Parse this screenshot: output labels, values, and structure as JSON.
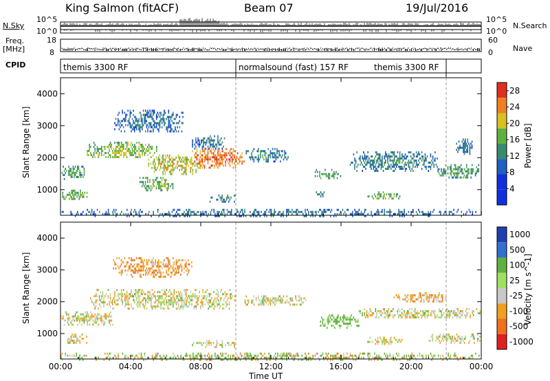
{
  "header": {
    "station": "King Salmon (fitACF)",
    "beam": "Beam 07",
    "date": "19/Jul/2016"
  },
  "side_labels": {
    "nsky": "N.Sky",
    "nsky_top": "10^5",
    "nsky_bottom": "10^0",
    "nsearch": "N.Search",
    "nsearch_top": "10^5",
    "nsearch_bottom": "10^0",
    "freq": "Freq.",
    "freq_unit": "[MHz]",
    "freq_top": "18",
    "freq_bottom": "8",
    "nave": "Nave",
    "nave_top": "60",
    "nave_bottom": "0",
    "cpid": "CPID"
  },
  "cpid_segments": [
    {
      "label": "themis 3300 RF",
      "start_hour": 0,
      "end_hour": 10
    },
    {
      "label": "normalsound (fast) 157 RF",
      "start_hour": 10,
      "end_hour": 22
    },
    {
      "label": "themis 3300 RF",
      "start_hour": 22,
      "end_hour": 24
    }
  ],
  "dashed_hours": [
    10,
    22
  ],
  "chart_data": [
    {
      "type": "heatmap",
      "title": "",
      "xlabel": "Time UT",
      "ylabel": "Slant Range [km]",
      "xlim": [
        0,
        24
      ],
      "ylim": [
        200,
        4500
      ],
      "x_ticks": [
        "00:00",
        "04:00",
        "08:00",
        "12:00",
        "16:00",
        "20:00",
        "00:00"
      ],
      "x_tick_hours": [
        0,
        4,
        8,
        12,
        16,
        20,
        24
      ],
      "y_ticks": [
        "1000",
        "2000",
        "3000",
        "4000"
      ],
      "y_tick_values": [
        1000,
        2000,
        3000,
        4000
      ],
      "colorbar": {
        "label": "Power [dB]",
        "labels": [
          "4",
          "8",
          "12",
          "16",
          "20",
          "24",
          "28"
        ],
        "values": [
          4,
          8,
          12,
          16,
          20,
          24,
          28
        ],
        "range": [
          0,
          30
        ],
        "colors": [
          "#1030e0",
          "#2060c0",
          "#3a8a70",
          "#60b040",
          "#d8c020",
          "#f08020",
          "#e03020"
        ]
      },
      "echo_regions": [
        {
          "t0": 0.0,
          "t1": 24.0,
          "r0": 200,
          "r1": 400,
          "power": 6
        },
        {
          "t0": 0.0,
          "t1": 1.5,
          "r0": 1350,
          "r1": 1750,
          "power": 10
        },
        {
          "t0": 0.1,
          "t1": 1.6,
          "r0": 700,
          "r1": 1000,
          "power": 12
        },
        {
          "t0": 1.5,
          "t1": 5.5,
          "r0": 2000,
          "r1": 2500,
          "power": 14
        },
        {
          "t0": 3.0,
          "t1": 7.0,
          "r0": 2800,
          "r1": 3500,
          "power": 6
        },
        {
          "t0": 4.5,
          "t1": 6.5,
          "r0": 1000,
          "r1": 1400,
          "power": 12
        },
        {
          "t0": 5.0,
          "t1": 8.0,
          "r0": 1500,
          "r1": 2100,
          "power": 16
        },
        {
          "t0": 7.5,
          "t1": 10.5,
          "r0": 1700,
          "r1": 2300,
          "power": 22
        },
        {
          "t0": 7.5,
          "t1": 9.5,
          "r0": 2300,
          "r1": 2700,
          "power": 6
        },
        {
          "t0": 8.5,
          "t1": 10.0,
          "r0": 650,
          "r1": 850,
          "power": 8
        },
        {
          "t0": 10.5,
          "t1": 13.0,
          "r0": 1900,
          "r1": 2300,
          "power": 8
        },
        {
          "t0": 14.5,
          "t1": 16.0,
          "r0": 1350,
          "r1": 1650,
          "power": 10
        },
        {
          "t0": 14.5,
          "t1": 15.2,
          "r0": 800,
          "r1": 950,
          "power": 10
        },
        {
          "t0": 16.5,
          "t1": 21.5,
          "r0": 1600,
          "r1": 2200,
          "power": 8
        },
        {
          "t0": 17.5,
          "t1": 19.5,
          "r0": 700,
          "r1": 950,
          "power": 12
        },
        {
          "t0": 21.5,
          "t1": 24.0,
          "r0": 1350,
          "r1": 1800,
          "power": 10
        },
        {
          "t0": 22.5,
          "t1": 23.5,
          "r0": 2100,
          "r1": 2600,
          "power": 6
        }
      ]
    },
    {
      "type": "heatmap",
      "title": "",
      "xlabel": "Time UT",
      "ylabel": "Slant Range [km]",
      "xlim": [
        0,
        24
      ],
      "ylim": [
        200,
        4500
      ],
      "x_ticks": [
        "00:00",
        "04:00",
        "08:00",
        "12:00",
        "16:00",
        "20:00",
        "00:00"
      ],
      "x_tick_hours": [
        0,
        4,
        8,
        12,
        16,
        20,
        24
      ],
      "y_ticks": [
        "1000",
        "2000",
        "3000",
        "4000"
      ],
      "y_tick_values": [
        1000,
        2000,
        3000,
        4000
      ],
      "colorbar": {
        "label": "Velocity [m s^-1]",
        "labels": [
          "1000",
          "500",
          "100",
          "25",
          "-25",
          "-100",
          "-500",
          "-1000"
        ],
        "colors": [
          "#2040b0",
          "#3070d0",
          "#60b040",
          "#a0e060",
          "#c8c8c8",
          "#f0a020",
          "#f07020",
          "#e02020"
        ]
      },
      "echo_regions": [
        {
          "t0": 0.0,
          "t1": 24.0,
          "r0": 200,
          "r1": 400,
          "velocity": 50
        },
        {
          "t0": 1.5,
          "t1": 10.0,
          "r0": 1800,
          "r1": 2400,
          "velocity": 0
        },
        {
          "t0": 0.0,
          "t1": 3.0,
          "r0": 1300,
          "r1": 1700,
          "velocity": 0
        },
        {
          "t0": 3.0,
          "t1": 7.5,
          "r0": 2800,
          "r1": 3400,
          "velocity": -80
        },
        {
          "t0": 0.2,
          "t1": 1.5,
          "r0": 700,
          "r1": 1000,
          "velocity": 0
        },
        {
          "t0": 7.5,
          "t1": 10.0,
          "r0": 600,
          "r1": 800,
          "velocity": 0
        },
        {
          "t0": 10.5,
          "t1": 14.0,
          "r0": 1900,
          "r1": 2200,
          "velocity": 0
        },
        {
          "t0": 14.8,
          "t1": 17.0,
          "r0": 1200,
          "r1": 1600,
          "velocity": 100
        },
        {
          "t0": 17.0,
          "t1": 24.0,
          "r0": 1500,
          "r1": 1800,
          "velocity": 0
        },
        {
          "t0": 17.5,
          "t1": 19.5,
          "r0": 700,
          "r1": 900,
          "velocity": 0
        },
        {
          "t0": 19.0,
          "t1": 22.0,
          "r0": 2000,
          "r1": 2300,
          "velocity": -50
        },
        {
          "t0": 21.0,
          "t1": 24.0,
          "r0": 700,
          "r1": 1000,
          "velocity": 0
        }
      ]
    }
  ]
}
